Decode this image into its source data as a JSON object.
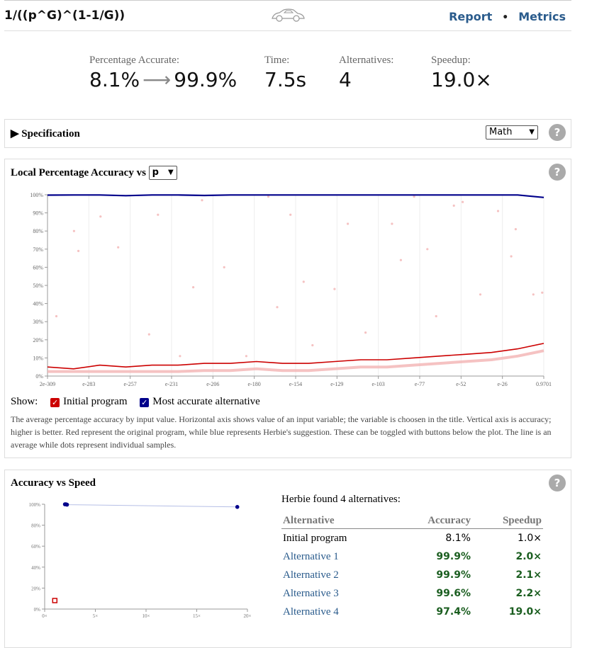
{
  "header": {
    "title": "1/((p^G)^(1-1/G))",
    "nav": [
      "Report",
      "Metrics"
    ]
  },
  "summary": {
    "accuracy_label": "Percentage Accurate:",
    "accuracy_from": "8.1%",
    "accuracy_to": "99.9%",
    "time_label": "Time:",
    "time_value": "7.5s",
    "alternatives_label": "Alternatives:",
    "alternatives_value": "4",
    "speedup_label": "Speedup:",
    "speedup_value": "19.0×"
  },
  "specification": {
    "label": "Specification",
    "format_select": "Math",
    "help": "?"
  },
  "accuracy_plot": {
    "title": "Local Percentage Accuracy vs",
    "variable_select": "p",
    "help": "?",
    "show_label": "Show:",
    "toggle_initial": "Initial program",
    "toggle_best": "Most accurate alternative",
    "description": "The average percentage accuracy by input value. Horizontal axis shows value of an input variable; the variable is choosen in the title. Vertical axis is accuracy; higher is better. Red represent the original program, while blue represents Herbie's suggestion. These can be toggled with buttons below the plot. The line is an average while dots represent individual samples.",
    "colors": {
      "initial": "#cc0000",
      "best": "#00008b"
    }
  },
  "speed_panel": {
    "title": "Accuracy vs Speed",
    "help": "?",
    "found_text": "Herbie found 4 alternatives:",
    "columns": [
      "Alternative",
      "Accuracy",
      "Speedup"
    ],
    "rows": [
      {
        "name": "Initial program",
        "accuracy": "8.1%",
        "speedup": "1.0×"
      },
      {
        "name": "Alternative 1",
        "accuracy": "99.9%",
        "speedup": "2.0×"
      },
      {
        "name": "Alternative 2",
        "accuracy": "99.9%",
        "speedup": "2.1×"
      },
      {
        "name": "Alternative 3",
        "accuracy": "99.6%",
        "speedup": "2.2×"
      },
      {
        "name": "Alternative 4",
        "accuracy": "97.4%",
        "speedup": "19.0×"
      }
    ]
  },
  "chart_data": [
    {
      "type": "line",
      "xlabel": "",
      "ylabel": "",
      "x_ticks": [
        "2e-309",
        "e-283",
        "e-257",
        "e-231",
        "e-206",
        "e-180",
        "e-154",
        "e-129",
        "e-103",
        "e-77",
        "e-52",
        "e-26",
        "0.9701"
      ],
      "y_ticks": [
        "0%",
        "10%",
        "20%",
        "30%",
        "40%",
        "50%",
        "60%",
        "70%",
        "80%",
        "90%",
        "100%"
      ],
      "ylim": [
        0,
        100
      ],
      "series": [
        {
          "name": "Initial program",
          "color": "#cc0000",
          "values": [
            5,
            4,
            6,
            5,
            6,
            6,
            7,
            7,
            8,
            7,
            7,
            8,
            9,
            9,
            10,
            11,
            12,
            13,
            15,
            18
          ]
        },
        {
          "name": "Most accurate alternative",
          "color": "#00008b",
          "values": [
            99.8,
            99.9,
            99.9,
            99.5,
            99.9,
            99.9,
            99.6,
            99.9,
            99.9,
            99.9,
            99.9,
            99.9,
            99.9,
            99.9,
            99.9,
            99.9,
            99.9,
            99.9,
            99.9,
            98.5
          ]
        }
      ]
    },
    {
      "type": "scatter",
      "xlabel": "",
      "ylabel": "",
      "x_ticks": [
        "0×",
        "5×",
        "10×",
        "15×",
        "20×"
      ],
      "y_ticks": [
        "0%",
        "20%",
        "40%",
        "60%",
        "80%",
        "100%"
      ],
      "xlim": [
        0,
        20
      ],
      "ylim": [
        0,
        100
      ],
      "series": [
        {
          "name": "Initial program",
          "color": "#cc0000",
          "points": [
            [
              1.0,
              8.1
            ]
          ]
        },
        {
          "name": "Alternatives",
          "color": "#00008b",
          "points": [
            [
              2.0,
              99.9
            ],
            [
              2.1,
              99.9
            ],
            [
              2.2,
              99.6
            ],
            [
              19.0,
              97.4
            ]
          ]
        }
      ]
    }
  ]
}
